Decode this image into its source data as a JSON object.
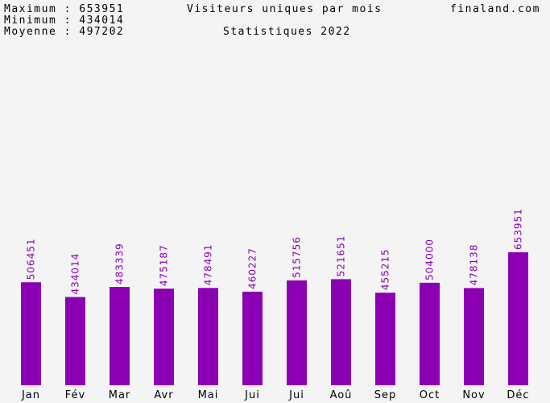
{
  "stats": {
    "max_label": "Maximum : 653951",
    "min_label": "Minimum : 434014",
    "avg_label": "Moyenne : 497202"
  },
  "header": {
    "title": "Visiteurs uniques par mois",
    "subtitle": "Statistiques 2022",
    "site": "finaland.com"
  },
  "colors": {
    "bar": "#8c00b4",
    "background": "#f4f4f4",
    "value_label": "#8c00b4"
  },
  "chart_data": {
    "type": "bar",
    "title": "Visiteurs uniques par mois",
    "subtitle": "Statistiques 2022",
    "categories": [
      "Jan",
      "Fév",
      "Mar",
      "Avr",
      "Mai",
      "Jui",
      "Jui",
      "Aoû",
      "Sep",
      "Oct",
      "Nov",
      "Déc"
    ],
    "values": [
      506451,
      434014,
      483339,
      475187,
      478491,
      460227,
      515756,
      521651,
      455215,
      504000,
      478138,
      653951
    ],
    "xlabel": "",
    "ylabel": "",
    "ylim": [
      0,
      653951
    ],
    "grid": false,
    "legend": "none"
  }
}
